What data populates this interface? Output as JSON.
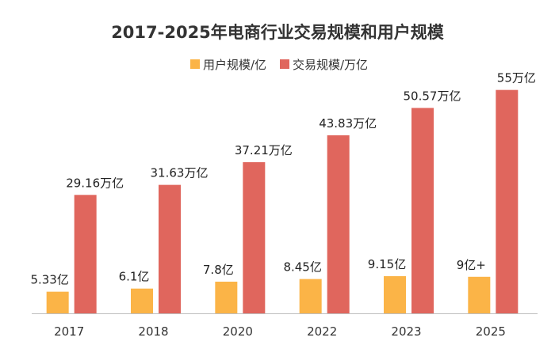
{
  "chart_data": {
    "type": "bar",
    "title": "2017-2025年电商行业交易规模和用户规模",
    "legend_position": "top-center",
    "grid": false,
    "categories": [
      "2017",
      "2018",
      "2020",
      "2022",
      "2023",
      "2025"
    ],
    "ylim": [
      0,
      60
    ],
    "series": [
      {
        "name": "用户规模/亿",
        "color": "#FBB447",
        "values": [
          5.33,
          6.1,
          7.8,
          8.45,
          9.15,
          9
        ],
        "labels": [
          "5.33亿",
          "6.1亿",
          "7.8亿",
          "8.45亿",
          "9.15亿",
          "9亿+"
        ]
      },
      {
        "name": "交易规模/万亿",
        "color": "#E0665D",
        "values": [
          29.16,
          31.63,
          37.21,
          43.83,
          50.57,
          55
        ],
        "labels": [
          "29.16万亿",
          "31.63万亿",
          "37.21万亿",
          "43.83万亿",
          "50.57万亿",
          "55万亿"
        ]
      }
    ]
  }
}
